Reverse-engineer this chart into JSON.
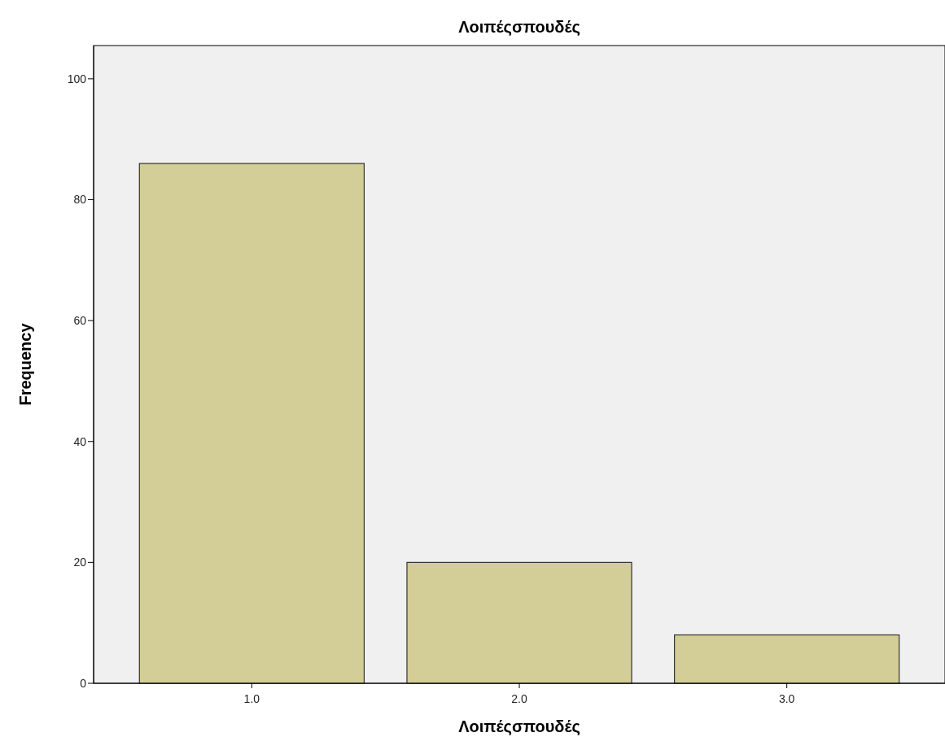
{
  "chart_data": {
    "type": "bar",
    "title": "Λοιπέςσπουδές",
    "xlabel": "Λοιπέςσπουδές",
    "ylabel": "Frequency",
    "categories": [
      "1.0",
      "2.0",
      "3.0"
    ],
    "values": [
      86,
      20,
      8
    ],
    "color": "#d3ce97",
    "ylim": [
      0,
      105.5
    ],
    "yticks": [
      0,
      20,
      40,
      60,
      80,
      100
    ],
    "grid": false
  }
}
